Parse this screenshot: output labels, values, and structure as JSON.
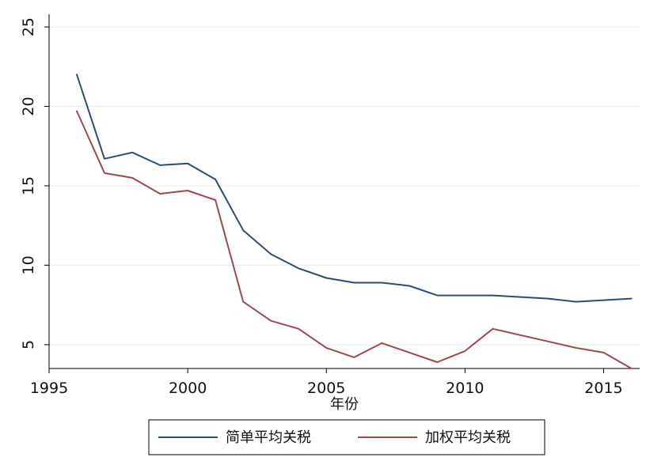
{
  "chart_data": {
    "type": "line",
    "title": "",
    "xlabel": "年份",
    "ylabel": "",
    "xlim": [
      1995,
      2016
    ],
    "ylim": [
      3.5,
      25
    ],
    "x_ticks": [
      1995,
      2000,
      2005,
      2010,
      2015
    ],
    "y_ticks": [
      5,
      10,
      15,
      20,
      25
    ],
    "grid": true,
    "legend_position": "bottom",
    "x": [
      1996,
      1997,
      1998,
      1999,
      2000,
      2001,
      2002,
      2003,
      2004,
      2005,
      2006,
      2007,
      2008,
      2009,
      2010,
      2011,
      2012,
      2013,
      2014,
      2015,
      2016
    ],
    "series": [
      {
        "name": "简单平均关税",
        "color": "#2a4d72",
        "values": [
          22.0,
          16.7,
          17.1,
          16.3,
          16.4,
          15.4,
          12.2,
          10.7,
          9.8,
          9.2,
          8.9,
          8.9,
          8.7,
          8.1,
          8.1,
          8.1,
          8.0,
          7.9,
          7.7,
          7.8,
          7.9
        ]
      },
      {
        "name": "加权平均关税",
        "color": "#a2464d",
        "values": [
          19.7,
          15.8,
          15.5,
          14.5,
          14.7,
          14.1,
          7.7,
          6.5,
          6.0,
          4.8,
          4.2,
          5.1,
          4.5,
          3.9,
          4.6,
          6.0,
          5.6,
          5.2,
          4.8,
          4.5,
          3.5
        ]
      }
    ]
  }
}
